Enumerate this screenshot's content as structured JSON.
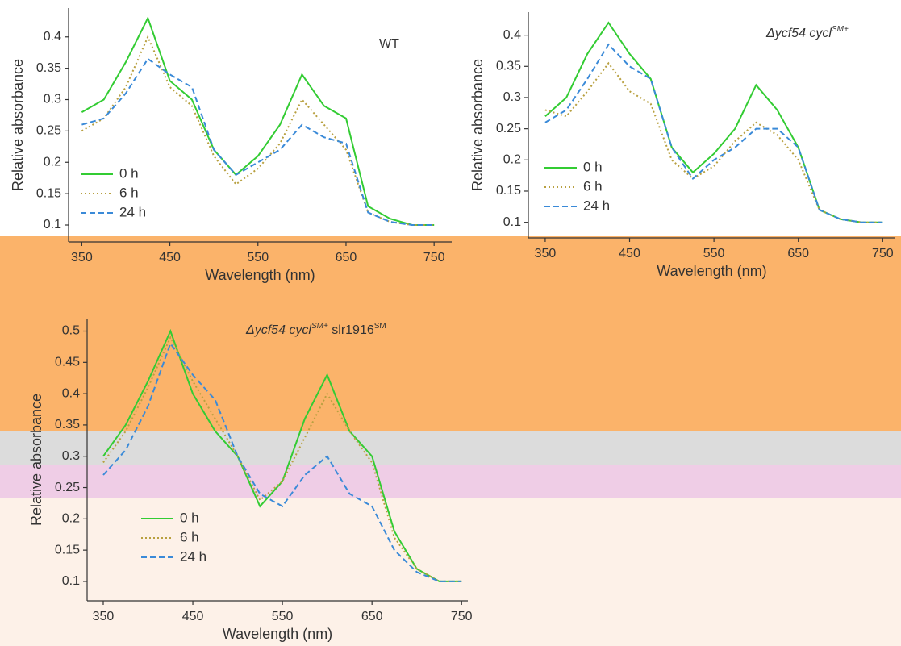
{
  "chart_data": [
    {
      "type": "line",
      "title": [
        {
          "text": "WT",
          "sup": false,
          "italic": false
        }
      ],
      "x_label": "Wavelength (nm)",
      "y_label": "Relative absorbance",
      "x": [
        350,
        375,
        400,
        425,
        450,
        475,
        500,
        525,
        550,
        575,
        600,
        625,
        650,
        675,
        700,
        725,
        750
      ],
      "xlim": [
        335,
        770
      ],
      "xticks": [
        350,
        450,
        550,
        650,
        750
      ],
      "ylim": [
        0.073,
        0.446
      ],
      "yticks": [
        0.1,
        0.15,
        0.2,
        0.25,
        0.3,
        0.35,
        0.4
      ],
      "series": [
        {
          "name": "0 h",
          "color": "#33cc33",
          "dash": "solid",
          "values": [
            0.28,
            0.3,
            0.36,
            0.43,
            0.33,
            0.3,
            0.22,
            0.18,
            0.21,
            0.26,
            0.34,
            0.29,
            0.27,
            0.13,
            0.11,
            0.1,
            0.1
          ]
        },
        {
          "name": "6 h",
          "color": "#b8a040",
          "dash": "dotted",
          "values": [
            0.25,
            0.27,
            0.32,
            0.4,
            0.32,
            0.29,
            0.21,
            0.165,
            0.19,
            0.23,
            0.3,
            0.26,
            0.22,
            0.12,
            0.105,
            0.1,
            0.1
          ]
        },
        {
          "name": "24 h",
          "color": "#3a8ad8",
          "dash": "dashed",
          "values": [
            0.26,
            0.27,
            0.31,
            0.365,
            0.34,
            0.32,
            0.22,
            0.18,
            0.2,
            0.22,
            0.26,
            0.24,
            0.23,
            0.12,
            0.105,
            0.1,
            0.1
          ]
        }
      ]
    },
    {
      "type": "line",
      "title": [
        {
          "text": "Δycf54 cycl",
          "sup": false,
          "italic": true
        },
        {
          "text": "SM+",
          "sup": true,
          "italic": true
        }
      ],
      "x_label": "Wavelength (nm)",
      "y_label": "Relative absorbance",
      "x": [
        350,
        375,
        400,
        425,
        450,
        475,
        500,
        525,
        550,
        575,
        600,
        625,
        650,
        675,
        700,
        725,
        750
      ],
      "xlim": [
        330,
        765
      ],
      "xticks": [
        350,
        450,
        550,
        650,
        750
      ],
      "ylim": [
        0.075,
        0.437
      ],
      "yticks": [
        0.1,
        0.15,
        0.2,
        0.25,
        0.3,
        0.35,
        0.4
      ],
      "series": [
        {
          "name": "0 h",
          "color": "#33cc33",
          "dash": "solid",
          "values": [
            0.27,
            0.3,
            0.37,
            0.42,
            0.37,
            0.33,
            0.22,
            0.18,
            0.21,
            0.25,
            0.32,
            0.28,
            0.22,
            0.12,
            0.105,
            0.1,
            0.1
          ]
        },
        {
          "name": "6 h",
          "color": "#b8a040",
          "dash": "dotted",
          "values": [
            0.28,
            0.27,
            0.31,
            0.355,
            0.31,
            0.29,
            0.2,
            0.17,
            0.19,
            0.23,
            0.26,
            0.24,
            0.2,
            0.12,
            0.105,
            0.1,
            0.1
          ]
        },
        {
          "name": "24 h",
          "color": "#3a8ad8",
          "dash": "dashed",
          "values": [
            0.26,
            0.28,
            0.33,
            0.385,
            0.35,
            0.33,
            0.22,
            0.17,
            0.2,
            0.22,
            0.25,
            0.25,
            0.22,
            0.12,
            0.105,
            0.1,
            0.1
          ]
        }
      ]
    },
    {
      "type": "line",
      "title": [
        {
          "text": "Δycf54 cycl",
          "sup": false,
          "italic": true
        },
        {
          "text": "SM+",
          "sup": true,
          "italic": true
        },
        {
          "text": " slr1916",
          "sup": false,
          "italic": false
        },
        {
          "text": "SM",
          "sup": true,
          "italic": false
        }
      ],
      "x_label": "Wavelength (nm)",
      "y_label": "Relative absorbance",
      "x": [
        350,
        375,
        400,
        425,
        450,
        475,
        500,
        525,
        550,
        575,
        600,
        625,
        650,
        675,
        700,
        725,
        750
      ],
      "xlim": [
        332,
        757
      ],
      "xticks": [
        350,
        450,
        550,
        650,
        750
      ],
      "ylim": [
        0.069,
        0.52
      ],
      "yticks": [
        0.1,
        0.15,
        0.2,
        0.25,
        0.3,
        0.35,
        0.4,
        0.45,
        0.5
      ],
      "series": [
        {
          "name": "0 h",
          "color": "#33cc33",
          "dash": "solid",
          "values": [
            0.3,
            0.35,
            0.42,
            0.5,
            0.4,
            0.34,
            0.3,
            0.22,
            0.26,
            0.36,
            0.43,
            0.34,
            0.3,
            0.18,
            0.12,
            0.1,
            0.1
          ]
        },
        {
          "name": "6 h",
          "color": "#b8a040",
          "dash": "dotted",
          "values": [
            0.29,
            0.34,
            0.41,
            0.49,
            0.42,
            0.36,
            0.3,
            0.23,
            0.26,
            0.33,
            0.4,
            0.34,
            0.29,
            0.17,
            0.12,
            0.1,
            0.1
          ]
        },
        {
          "name": "24 h",
          "color": "#3a8ad8",
          "dash": "dashed",
          "values": [
            0.27,
            0.31,
            0.38,
            0.48,
            0.43,
            0.39,
            0.3,
            0.24,
            0.22,
            0.27,
            0.3,
            0.24,
            0.22,
            0.15,
            0.115,
            0.1,
            0.1
          ]
        }
      ]
    }
  ]
}
